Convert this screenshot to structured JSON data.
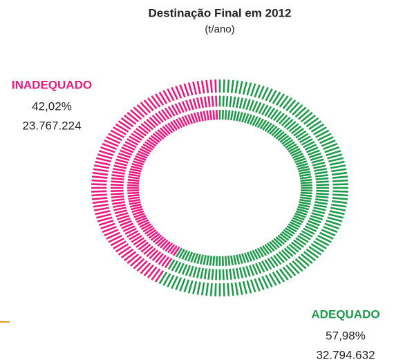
{
  "chart_data": {
    "type": "pie",
    "title": "Destinação Final em 2012",
    "subtitle": "(t/ano)",
    "categories": [
      "INADEQUADO",
      "ADEQUADO"
    ],
    "values": [
      42.02,
      57.98
    ],
    "value_labels": [
      "42,02%",
      "57,98%"
    ],
    "amounts": [
      23767224,
      32794632
    ],
    "amount_labels": [
      "23.767.224",
      "32.794.632"
    ],
    "colors": [
      "#e8197f",
      "#1e9a4b"
    ]
  }
}
